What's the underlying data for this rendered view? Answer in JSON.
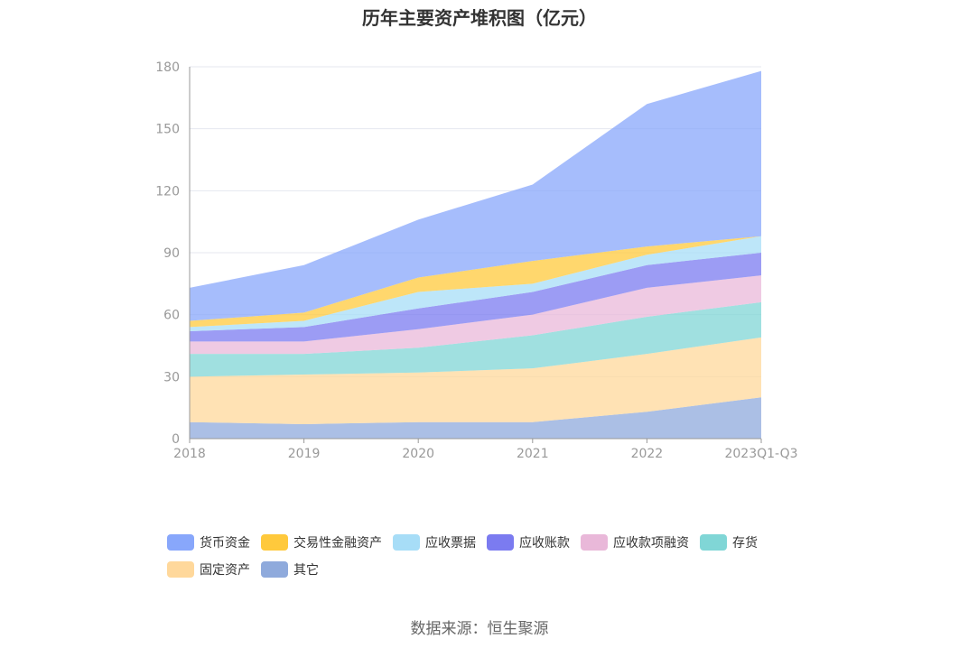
{
  "chart_data": {
    "type": "area",
    "stacked": true,
    "title": "历年主要资产堆积图（亿元）",
    "source": "数据来源：恒生聚源",
    "categories": [
      "2018",
      "2019",
      "2020",
      "2021",
      "2022",
      "2023Q1-Q3"
    ],
    "y_ticks": [
      "0",
      "30",
      "60",
      "90",
      "120",
      "150",
      "180"
    ],
    "ylim": [
      0,
      180
    ],
    "grid": true,
    "legend_position": "bottom",
    "series": [
      {
        "name": "其它",
        "color": "#8FAADC",
        "values": [
          8,
          7,
          8,
          8,
          13,
          20
        ]
      },
      {
        "name": "固定资产",
        "color": "#FFD89B",
        "values": [
          22,
          24,
          24,
          26,
          28,
          29
        ]
      },
      {
        "name": "存货",
        "color": "#80D6D6",
        "values": [
          11,
          10,
          12,
          16,
          18,
          17
        ]
      },
      {
        "name": "应收款项融资",
        "color": "#E9B8D9",
        "values": [
          6,
          6,
          9,
          10,
          14,
          13
        ]
      },
      {
        "name": "应收账款",
        "color": "#7B7BF0",
        "values": [
          5,
          7,
          10,
          11,
          11,
          11
        ]
      },
      {
        "name": "应收票据",
        "color": "#A7DDF7",
        "values": [
          2,
          3,
          8,
          4,
          5,
          8
        ]
      },
      {
        "name": "交易性金融资产",
        "color": "#FFC93C",
        "values": [
          3,
          4,
          7,
          11,
          4,
          0
        ]
      },
      {
        "name": "货币资金",
        "color": "#88A7FB",
        "values": [
          16,
          23,
          28,
          37,
          69,
          80
        ]
      }
    ]
  },
  "legend": [
    {
      "name": "货币资金",
      "color": "#88A7FB"
    },
    {
      "name": "交易性金融资产",
      "color": "#FFC93C"
    },
    {
      "name": "应收票据",
      "color": "#A7DDF7"
    },
    {
      "name": "应收账款",
      "color": "#7B7BF0"
    },
    {
      "name": "应收款项融资",
      "color": "#E9B8D9"
    },
    {
      "name": "存货",
      "color": "#80D6D6"
    },
    {
      "name": "固定资产",
      "color": "#FFD89B"
    },
    {
      "name": "其它",
      "color": "#8FAADC"
    }
  ]
}
